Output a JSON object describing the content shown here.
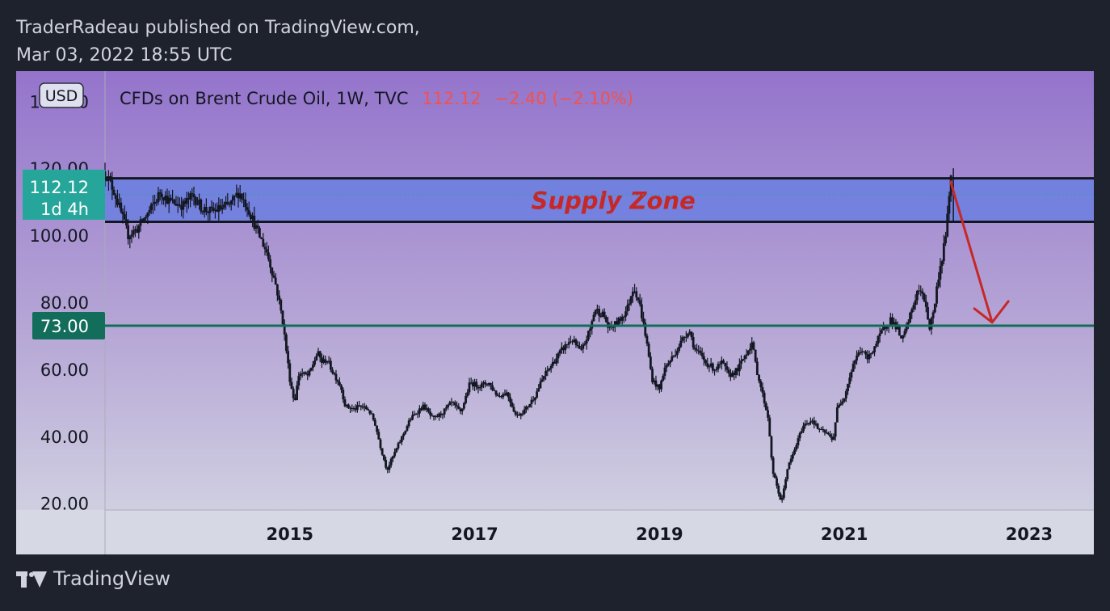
{
  "header": {
    "line1": "TraderRadeau published on TradingView.com,",
    "line2": "Mar 03, 2022 18:55 UTC"
  },
  "footer": {
    "brand": "TradingView",
    "logo_icon": "tradingview-logo-icon"
  },
  "legend": {
    "symbol": "CFDs on Brent Crude Oil, 1W, TVC",
    "price": "112.12",
    "change": "−2.40 (−2.10%)"
  },
  "currency_label": "USD",
  "price_tag": {
    "value": "112.12",
    "countdown": "1d 4h"
  },
  "level_tag": {
    "value": "73.00"
  },
  "annotation": {
    "text": "Supply Zone"
  },
  "colors": {
    "accent_red": "#ef5350",
    "supply_zone": "#6b7fe0",
    "support_line": "#136d5b",
    "price_tag": "#26a69a",
    "candles": "#131722",
    "arrow": "#c62828",
    "bg_top": "#9474cc",
    "bg_bottom": "#d6d9e4"
  },
  "chart_data": {
    "type": "candlestick",
    "symbol": "TVC:UKOIL",
    "interval": "1W",
    "ylim": [
      18,
      149
    ],
    "y_ticks": [
      "140.00",
      "120.00",
      "100.00",
      "80.00",
      "60.00",
      "40.00",
      "20.00"
    ],
    "y_tick_values": [
      140,
      120,
      100,
      80,
      60,
      40,
      20
    ],
    "xlim": [
      2013.0,
      2023.7
    ],
    "x_ticks": [
      "2015",
      "2017",
      "2019",
      "2021",
      "2023"
    ],
    "x_tick_values": [
      2015,
      2017,
      2019,
      2021,
      2023
    ],
    "supply_zone": {
      "low": 104,
      "high": 117
    },
    "support_level": 73,
    "arrow": {
      "from": {
        "x": 2022.15,
        "y": 116
      },
      "to": {
        "x": 2022.6,
        "y": 74
      }
    },
    "close_path": [
      [
        2013.0,
        119
      ],
      [
        2013.1,
        113
      ],
      [
        2013.25,
        100
      ],
      [
        2013.35,
        102
      ],
      [
        2013.5,
        108
      ],
      [
        2013.6,
        113
      ],
      [
        2013.7,
        110
      ],
      [
        2013.85,
        109
      ],
      [
        2013.95,
        112
      ],
      [
        2014.05,
        108
      ],
      [
        2014.15,
        107
      ],
      [
        2014.25,
        108
      ],
      [
        2014.35,
        109
      ],
      [
        2014.45,
        113
      ],
      [
        2014.55,
        108
      ],
      [
        2014.65,
        101
      ],
      [
        2014.75,
        95
      ],
      [
        2014.85,
        85
      ],
      [
        2014.92,
        75
      ],
      [
        2015.0,
        57
      ],
      [
        2015.05,
        50
      ],
      [
        2015.1,
        59
      ],
      [
        2015.2,
        58
      ],
      [
        2015.3,
        65
      ],
      [
        2015.35,
        62
      ],
      [
        2015.4,
        63
      ],
      [
        2015.45,
        60
      ],
      [
        2015.55,
        55
      ],
      [
        2015.6,
        49
      ],
      [
        2015.7,
        48
      ],
      [
        2015.75,
        49
      ],
      [
        2015.85,
        48
      ],
      [
        2015.92,
        44
      ],
      [
        2015.98,
        37
      ],
      [
        2016.05,
        30
      ],
      [
        2016.1,
        33
      ],
      [
        2016.2,
        39
      ],
      [
        2016.3,
        45
      ],
      [
        2016.4,
        48
      ],
      [
        2016.45,
        49
      ],
      [
        2016.55,
        45
      ],
      [
        2016.65,
        47
      ],
      [
        2016.75,
        50
      ],
      [
        2016.85,
        47
      ],
      [
        2016.95,
        56
      ],
      [
        2017.05,
        55
      ],
      [
        2017.15,
        56
      ],
      [
        2017.25,
        52
      ],
      [
        2017.35,
        53
      ],
      [
        2017.45,
        46
      ],
      [
        2017.55,
        48
      ],
      [
        2017.65,
        52
      ],
      [
        2017.75,
        58
      ],
      [
        2017.85,
        62
      ],
      [
        2017.95,
        66
      ],
      [
        2018.05,
        69
      ],
      [
        2018.15,
        65
      ],
      [
        2018.25,
        72
      ],
      [
        2018.3,
        78
      ],
      [
        2018.4,
        76
      ],
      [
        2018.45,
        72
      ],
      [
        2018.55,
        74
      ],
      [
        2018.65,
        78
      ],
      [
        2018.72,
        85
      ],
      [
        2018.78,
        80
      ],
      [
        2018.85,
        70
      ],
      [
        2018.92,
        57
      ],
      [
        2019.0,
        54
      ],
      [
        2019.05,
        60
      ],
      [
        2019.15,
        64
      ],
      [
        2019.25,
        69
      ],
      [
        2019.32,
        72
      ],
      [
        2019.38,
        66
      ],
      [
        2019.45,
        64
      ],
      [
        2019.5,
        62
      ],
      [
        2019.6,
        60
      ],
      [
        2019.68,
        62
      ],
      [
        2019.75,
        58
      ],
      [
        2019.85,
        60
      ],
      [
        2019.92,
        64
      ],
      [
        2020.0,
        68
      ],
      [
        2020.05,
        60
      ],
      [
        2020.12,
        52
      ],
      [
        2020.18,
        45
      ],
      [
        2020.22,
        30
      ],
      [
        2020.28,
        24
      ],
      [
        2020.32,
        20
      ],
      [
        2020.38,
        30
      ],
      [
        2020.45,
        35
      ],
      [
        2020.55,
        43
      ],
      [
        2020.65,
        45
      ],
      [
        2020.72,
        42
      ],
      [
        2020.8,
        41
      ],
      [
        2020.88,
        39
      ],
      [
        2020.92,
        48
      ],
      [
        2021.0,
        52
      ],
      [
        2021.1,
        62
      ],
      [
        2021.18,
        66
      ],
      [
        2021.25,
        63
      ],
      [
        2021.35,
        68
      ],
      [
        2021.42,
        72
      ],
      [
        2021.5,
        75
      ],
      [
        2021.58,
        72
      ],
      [
        2021.62,
        68
      ],
      [
        2021.7,
        75
      ],
      [
        2021.8,
        84
      ],
      [
        2021.88,
        80
      ],
      [
        2021.92,
        72
      ],
      [
        2021.97,
        78
      ],
      [
        2022.02,
        88
      ],
      [
        2022.07,
        95
      ],
      [
        2022.12,
        106
      ],
      [
        2022.15,
        119
      ],
      [
        2022.17,
        112
      ]
    ]
  }
}
